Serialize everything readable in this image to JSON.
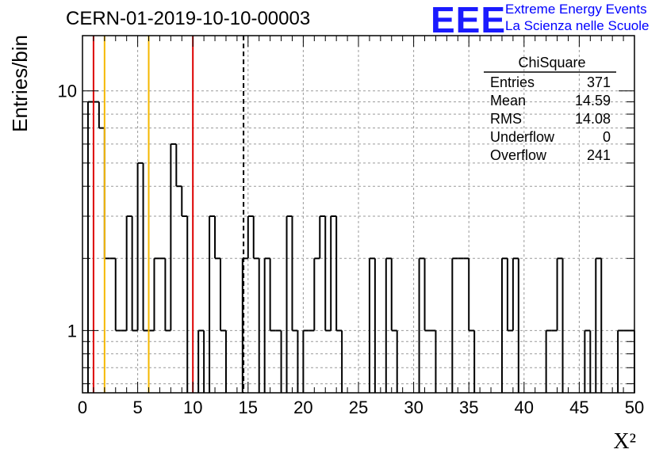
{
  "header": {
    "title": "CERN-01-2019-10-10-00003",
    "logo_mark": "EEE",
    "logo_line1": "Extreme Energy Events",
    "logo_line2": "La Scienza nelle Scuole"
  },
  "stats_box": {
    "title": "ChiSquare",
    "rows": [
      {
        "label": "Entries",
        "value": "371"
      },
      {
        "label": "Mean",
        "value": "14.59"
      },
      {
        "label": "RMS",
        "value": "14.08"
      },
      {
        "label": "Underflow",
        "value": "0"
      },
      {
        "label": "Overflow",
        "value": "241"
      }
    ]
  },
  "chart_data": {
    "type": "histogram",
    "title": "CERN-01-2019-10-10-00003",
    "xlabel": "X²",
    "ylabel": "Entries/bin",
    "xlim": [
      0,
      50
    ],
    "ylim": [
      0.55,
      17
    ],
    "yscale": "log",
    "grid": true,
    "bin_width": 0.5,
    "x_ticks": [
      "0",
      "5",
      "10",
      "15",
      "20",
      "25",
      "30",
      "35",
      "40",
      "45",
      "50"
    ],
    "y_ticks": [
      "1",
      "10"
    ],
    "bins": [
      {
        "x0": 0.5,
        "value": 9
      },
      {
        "x0": 1.0,
        "value": 9
      },
      {
        "x0": 1.5,
        "value": 7
      },
      {
        "x0": 2.0,
        "value": 2
      },
      {
        "x0": 2.5,
        "value": 2
      },
      {
        "x0": 3.0,
        "value": 1
      },
      {
        "x0": 3.5,
        "value": 1
      },
      {
        "x0": 4.0,
        "value": 3
      },
      {
        "x0": 4.5,
        "value": 1
      },
      {
        "x0": 5.0,
        "value": 5
      },
      {
        "x0": 5.5,
        "value": 1
      },
      {
        "x0": 6.0,
        "value": 1
      },
      {
        "x0": 6.5,
        "value": 2
      },
      {
        "x0": 7.0,
        "value": 2
      },
      {
        "x0": 7.5,
        "value": 1
      },
      {
        "x0": 8.0,
        "value": 6
      },
      {
        "x0": 8.5,
        "value": 4
      },
      {
        "x0": 9.0,
        "value": 3
      },
      {
        "x0": 10.5,
        "value": 1
      },
      {
        "x0": 11.5,
        "value": 3
      },
      {
        "x0": 12.0,
        "value": 2
      },
      {
        "x0": 12.5,
        "value": 1
      },
      {
        "x0": 14.5,
        "value": 2
      },
      {
        "x0": 15.0,
        "value": 3
      },
      {
        "x0": 15.5,
        "value": 2
      },
      {
        "x0": 16.5,
        "value": 2
      },
      {
        "x0": 17.0,
        "value": 1
      },
      {
        "x0": 17.5,
        "value": 1
      },
      {
        "x0": 18.5,
        "value": 3
      },
      {
        "x0": 19.0,
        "value": 1
      },
      {
        "x0": 20.0,
        "value": 1
      },
      {
        "x0": 20.5,
        "value": 1
      },
      {
        "x0": 21.0,
        "value": 2
      },
      {
        "x0": 21.5,
        "value": 3
      },
      {
        "x0": 22.0,
        "value": 1
      },
      {
        "x0": 22.5,
        "value": 3
      },
      {
        "x0": 23.0,
        "value": 1
      },
      {
        "x0": 26.0,
        "value": 2
      },
      {
        "x0": 27.5,
        "value": 2
      },
      {
        "x0": 28.0,
        "value": 1
      },
      {
        "x0": 30.5,
        "value": 2
      },
      {
        "x0": 31.0,
        "value": 1
      },
      {
        "x0": 31.5,
        "value": 1
      },
      {
        "x0": 33.5,
        "value": 2
      },
      {
        "x0": 34.0,
        "value": 2
      },
      {
        "x0": 34.5,
        "value": 2
      },
      {
        "x0": 35.0,
        "value": 1
      },
      {
        "x0": 38.0,
        "value": 2
      },
      {
        "x0": 38.5,
        "value": 1
      },
      {
        "x0": 39.0,
        "value": 2
      },
      {
        "x0": 42.0,
        "value": 1
      },
      {
        "x0": 42.5,
        "value": 1
      },
      {
        "x0": 43.0,
        "value": 2
      },
      {
        "x0": 45.5,
        "value": 1
      },
      {
        "x0": 46.5,
        "value": 2
      },
      {
        "x0": 48.5,
        "value": 1
      },
      {
        "x0": 49.0,
        "value": 1
      },
      {
        "x0": 49.5,
        "value": 1
      }
    ],
    "reference_lines": [
      {
        "x": 1.0,
        "color": "#dd0000",
        "style": "solid"
      },
      {
        "x": 2.0,
        "color": "#f5b800",
        "style": "solid"
      },
      {
        "x": 6.0,
        "color": "#f5b800",
        "style": "solid"
      },
      {
        "x": 10.0,
        "color": "#dd0000",
        "style": "solid"
      },
      {
        "x": 14.59,
        "color": "#000000",
        "style": "dashed"
      }
    ],
    "colors": {
      "histogram": "#000000",
      "grid": "#9a9a9a",
      "logo": "#0000ff"
    }
  }
}
